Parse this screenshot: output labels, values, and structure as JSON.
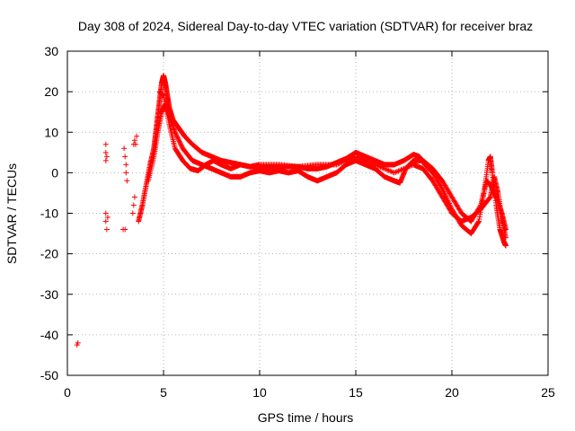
{
  "chart_data": {
    "type": "scatter",
    "title": "Day 308 of 2024, Sidereal Day-to-day VTEC variation (SDTVAR) for receiver braz",
    "xlabel": "GPS time / hours",
    "ylabel": "SDTVAR / TECUs",
    "xlim": [
      0,
      25
    ],
    "ylim": [
      -50,
      30
    ],
    "xticks": [
      0,
      5,
      10,
      15,
      20,
      25
    ],
    "yticks": [
      -50,
      -40,
      -30,
      -20,
      -10,
      0,
      10,
      20,
      30
    ],
    "xtick_labels": [
      "0",
      "5",
      "10",
      "15",
      "20",
      "25"
    ],
    "ytick_labels": [
      "-50",
      "-40",
      "-30",
      "-20",
      "-10",
      "0",
      "10",
      "20",
      "30"
    ],
    "grid": true,
    "marker": "+",
    "color": "#ff0000",
    "series": [
      {
        "name": "early isolated points",
        "points": [
          [
            0.5,
            -42.5
          ],
          [
            0.55,
            -42
          ],
          [
            2.0,
            3
          ],
          [
            2.0,
            5
          ],
          [
            2.0,
            7
          ],
          [
            2.05,
            4
          ],
          [
            2.0,
            -10
          ],
          [
            2.0,
            -12
          ],
          [
            2.05,
            -14
          ],
          [
            2.1,
            -11
          ],
          [
            2.9,
            -14
          ],
          [
            3.0,
            -14
          ],
          [
            2.95,
            6
          ],
          [
            3.0,
            4
          ],
          [
            3.05,
            2
          ],
          [
            3.1,
            -2
          ],
          [
            3.05,
            0
          ],
          [
            3.4,
            -10
          ],
          [
            3.45,
            -8
          ],
          [
            3.5,
            -6
          ],
          [
            3.45,
            7
          ],
          [
            3.5,
            8
          ],
          [
            3.6,
            9
          ],
          [
            3.55,
            7
          ]
        ]
      },
      {
        "name": "track A",
        "points": [
          [
            3.7,
            -12
          ],
          [
            3.9,
            -8
          ],
          [
            4.1,
            -3
          ],
          [
            4.3,
            2
          ],
          [
            4.5,
            6
          ],
          [
            4.6,
            10
          ],
          [
            4.7,
            14
          ],
          [
            4.8,
            18
          ],
          [
            4.9,
            22
          ],
          [
            5.0,
            24
          ],
          [
            5.1,
            22
          ],
          [
            5.2,
            19
          ],
          [
            5.3,
            16
          ],
          [
            5.5,
            13
          ],
          [
            5.8,
            11
          ],
          [
            6.1,
            9
          ],
          [
            6.5,
            7
          ],
          [
            7.0,
            5
          ],
          [
            7.5,
            4
          ],
          [
            8.0,
            3
          ],
          [
            8.5,
            2.5
          ],
          [
            9.0,
            2
          ],
          [
            9.5,
            1.5
          ],
          [
            10.0,
            1.5
          ],
          [
            10.5,
            1.2
          ],
          [
            11.0,
            1.5
          ],
          [
            11.5,
            1.5
          ],
          [
            12.0,
            1.5
          ],
          [
            12.5,
            1
          ],
          [
            13.0,
            1
          ],
          [
            13.5,
            1.5
          ],
          [
            14.0,
            2.5
          ],
          [
            14.5,
            3.5
          ],
          [
            15.0,
            5
          ],
          [
            15.5,
            4
          ],
          [
            16.0,
            3
          ],
          [
            16.5,
            2
          ],
          [
            17.0,
            2
          ],
          [
            17.5,
            3
          ],
          [
            18.0,
            4.5
          ],
          [
            18.3,
            4
          ],
          [
            18.6,
            2
          ],
          [
            19.0,
            0
          ],
          [
            19.5,
            -4
          ],
          [
            20.0,
            -9
          ],
          [
            20.5,
            -13
          ],
          [
            21.0,
            -15
          ],
          [
            21.4,
            -12
          ],
          [
            21.7,
            -4
          ],
          [
            21.9,
            3
          ],
          [
            22.0,
            4
          ],
          [
            22.1,
            0
          ],
          [
            22.3,
            -8
          ],
          [
            22.5,
            -14
          ],
          [
            22.7,
            -17
          ],
          [
            22.8,
            -18
          ]
        ]
      },
      {
        "name": "track B",
        "points": [
          [
            4.2,
            -2
          ],
          [
            4.5,
            4
          ],
          [
            4.7,
            10
          ],
          [
            4.9,
            15
          ],
          [
            5.1,
            17
          ],
          [
            5.3,
            14
          ],
          [
            5.6,
            10
          ],
          [
            6.0,
            6
          ],
          [
            6.5,
            3
          ],
          [
            7.0,
            2
          ],
          [
            7.5,
            1
          ],
          [
            8.0,
            0
          ],
          [
            8.5,
            -1
          ],
          [
            9.0,
            -1
          ],
          [
            9.5,
            0
          ],
          [
            10.0,
            0.5
          ],
          [
            10.5,
            0
          ],
          [
            11.0,
            0.5
          ],
          [
            11.5,
            0
          ],
          [
            12.0,
            0.5
          ],
          [
            12.5,
            -1
          ],
          [
            13.0,
            -2
          ],
          [
            13.5,
            -1
          ],
          [
            14.0,
            0
          ],
          [
            14.5,
            2
          ],
          [
            15.0,
            3
          ],
          [
            15.5,
            2
          ],
          [
            16.0,
            1
          ],
          [
            16.5,
            -1
          ],
          [
            17.0,
            -2
          ],
          [
            17.3,
            -2.5
          ],
          [
            17.6,
            1
          ],
          [
            18.0,
            3
          ],
          [
            18.5,
            3
          ],
          [
            19.0,
            1
          ],
          [
            19.5,
            -2
          ],
          [
            20.0,
            -6
          ],
          [
            20.5,
            -10
          ],
          [
            21.0,
            -12
          ],
          [
            21.5,
            -8
          ],
          [
            21.8,
            -2
          ],
          [
            22.0,
            -3
          ],
          [
            22.3,
            -6
          ],
          [
            22.6,
            -10
          ],
          [
            22.8,
            -14
          ]
        ]
      },
      {
        "name": "track C",
        "points": [
          [
            4.8,
            20
          ],
          [
            5.0,
            19
          ],
          [
            5.3,
            12
          ],
          [
            5.6,
            6
          ],
          [
            6.0,
            3
          ],
          [
            6.4,
            1
          ],
          [
            6.8,
            0.5
          ],
          [
            7.2,
            2
          ],
          [
            7.6,
            3
          ],
          [
            8.0,
            2
          ],
          [
            8.5,
            1
          ],
          [
            9.0,
            2
          ],
          [
            9.5,
            1.5
          ],
          [
            10.0,
            2
          ],
          [
            11.0,
            2
          ],
          [
            12.0,
            1.5
          ],
          [
            13.0,
            2
          ],
          [
            14.0,
            2
          ],
          [
            15.0,
            4
          ],
          [
            16.0,
            2
          ],
          [
            17.0,
            0
          ],
          [
            18.0,
            2
          ],
          [
            18.5,
            1
          ],
          [
            19.0,
            -2
          ],
          [
            19.5,
            -6
          ],
          [
            20.0,
            -10
          ],
          [
            20.5,
            -12
          ],
          [
            21.0,
            -11
          ],
          [
            21.5,
            -9
          ],
          [
            22.0,
            -6
          ],
          [
            22.2,
            -1
          ],
          [
            22.4,
            -5
          ],
          [
            22.6,
            -11
          ],
          [
            22.8,
            -16
          ]
        ]
      }
    ]
  }
}
